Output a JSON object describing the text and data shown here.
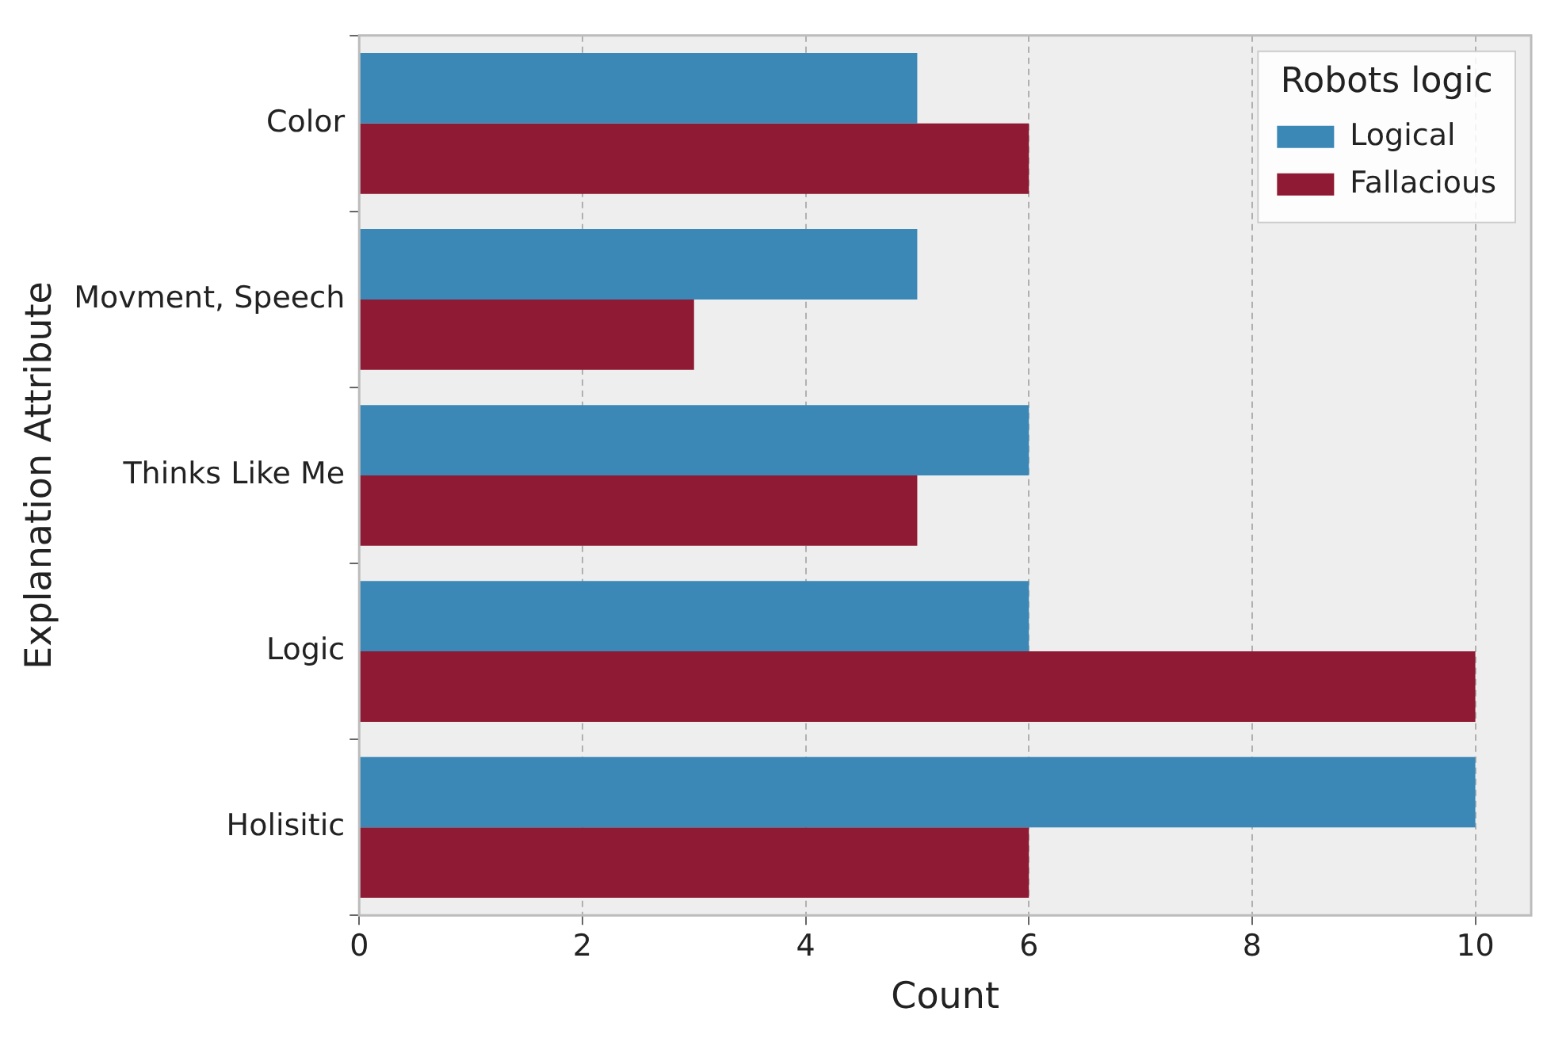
{
  "chart_data": {
    "type": "bar",
    "orientation": "horizontal",
    "xlabel": "Count",
    "ylabel": "Explanation Attribute",
    "legend_title": "Robots logic",
    "categories": [
      "Color",
      "Movment, Speech",
      "Thinks Like Me",
      "Logic",
      "Holisitic"
    ],
    "series": [
      {
        "name": "Logical",
        "color": "#3b88b7",
        "values": [
          5,
          5,
          6,
          6,
          10
        ]
      },
      {
        "name": "Fallacious",
        "color": "#8f1a33",
        "values": [
          6,
          3,
          5,
          10,
          6
        ]
      }
    ],
    "xlim": [
      0,
      10.5
    ],
    "xticks": [
      0,
      2,
      4,
      6,
      8,
      10
    ],
    "grid": "x",
    "legend": "top right"
  }
}
